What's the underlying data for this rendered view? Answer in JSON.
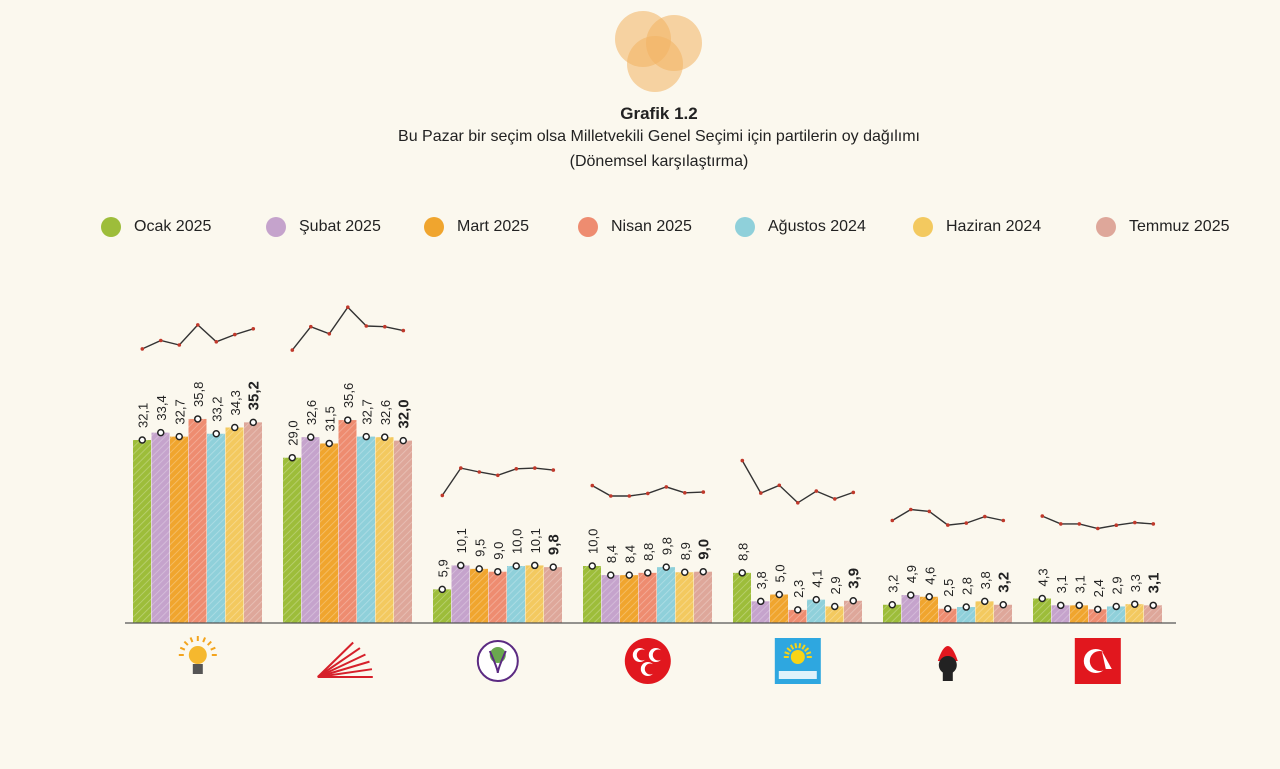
{
  "header": {
    "title": "Grafik 1.2",
    "subtitle": "Bu Pazar bir seçim olsa Milletvekili Genel Seçimi için partilerin oy dağılımı",
    "subtitle2": "(Dönemsel karşılaştırma)"
  },
  "colors": {
    "background": "#fbf8ee",
    "series": [
      "#9dbd3a",
      "#c5a3cc",
      "#f0a52e",
      "#ee8c70",
      "#8fd0da",
      "#f3c95f",
      "#dea79a"
    ]
  },
  "chart_data": {
    "type": "bar",
    "categories": [
      "AK Parti",
      "CHP",
      "DEM Parti",
      "MHP",
      "İYİ Parti",
      "Zafer Partisi",
      "Yeniden Refah Partisi"
    ],
    "category_icons": [
      "ak-parti-logo",
      "chp-logo",
      "dem-parti-logo",
      "mhp-logo",
      "iyi-parti-logo",
      "zafer-partisi-logo",
      "yeniden-refah-logo"
    ],
    "series": [
      {
        "name": "Ocak 2025",
        "values": [
          32.1,
          29.0,
          5.9,
          10.0,
          8.8,
          3.2,
          4.3
        ]
      },
      {
        "name": "Şubat 2025",
        "values": [
          33.4,
          32.6,
          10.1,
          8.4,
          3.8,
          4.9,
          3.1
        ]
      },
      {
        "name": "Mart 2025",
        "values": [
          32.7,
          31.5,
          9.5,
          8.4,
          5.0,
          4.6,
          3.1
        ]
      },
      {
        "name": "Nisan 2025",
        "values": [
          35.8,
          35.6,
          9.0,
          8.8,
          2.3,
          2.5,
          2.4
        ]
      },
      {
        "name": "Ağustos 2024",
        "values": [
          33.2,
          32.7,
          10.0,
          9.8,
          4.1,
          2.8,
          2.9
        ]
      },
      {
        "name": "Haziran 2024",
        "values": [
          34.3,
          32.6,
          10.1,
          8.9,
          2.9,
          3.8,
          3.3
        ]
      },
      {
        "name": "Temmuz 2025",
        "values": [
          35.2,
          32.0,
          9.8,
          9.0,
          3.9,
          3.2,
          3.1
        ]
      }
    ],
    "value_labels": [
      [
        "32,1",
        "33,4",
        "32,7",
        "35,8",
        "33,2",
        "34,3",
        "35,2"
      ],
      [
        "29,0",
        "32,6",
        "31,5",
        "35,6",
        "32,7",
        "32,6",
        "32,0"
      ],
      [
        "5,9",
        "10,1",
        "9,5",
        "9,0",
        "10,0",
        "10,1",
        "9,8"
      ],
      [
        "10,0",
        "8,4",
        "8,4",
        "8,8",
        "9,8",
        "8,9",
        "9,0"
      ],
      [
        "8,8",
        "3,8",
        "5,0",
        "2,3",
        "4,1",
        "2,9",
        "3,9"
      ],
      [
        "3,2",
        "4,9",
        "4,6",
        "2,5",
        "2,8",
        "3,8",
        "3,2"
      ],
      [
        "4,3",
        "3,1",
        "3,1",
        "2,4",
        "2,9",
        "3,3",
        "3,1"
      ]
    ],
    "ylim": [
      0,
      40
    ],
    "xlabel": "",
    "ylabel": "",
    "legend": "top",
    "grid": false
  }
}
